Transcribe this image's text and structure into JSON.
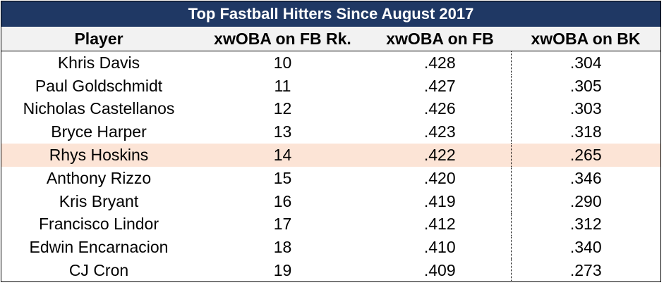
{
  "table": {
    "title": "Top Fastball Hitters Since August 2017",
    "header": [
      "Player",
      "xwOBA on FB Rk.",
      "xwOBA on FB",
      "xwOBA on BK"
    ],
    "rows": [
      [
        "Khris Davis",
        10,
        ".428",
        ".304"
      ],
      [
        "Paul Goldschmidt",
        11,
        ".427",
        ".305"
      ],
      [
        "Nicholas Castellanos",
        12,
        ".426",
        ".303"
      ],
      [
        "Bryce Harper",
        13,
        ".423",
        ".318"
      ],
      [
        "Rhys Hoskins",
        14,
        ".422",
        ".265"
      ],
      [
        "Anthony Rizzo",
        15,
        ".420",
        ".346"
      ],
      [
        "Kris Bryant",
        16,
        ".419",
        ".290"
      ],
      [
        "Francisco Lindor",
        17,
        ".412",
        ".312"
      ],
      [
        "Edwin Encarnacion",
        18,
        ".410",
        ".340"
      ],
      [
        "CJ Cron",
        19,
        ".409",
        ".273"
      ]
    ]
  }
}
